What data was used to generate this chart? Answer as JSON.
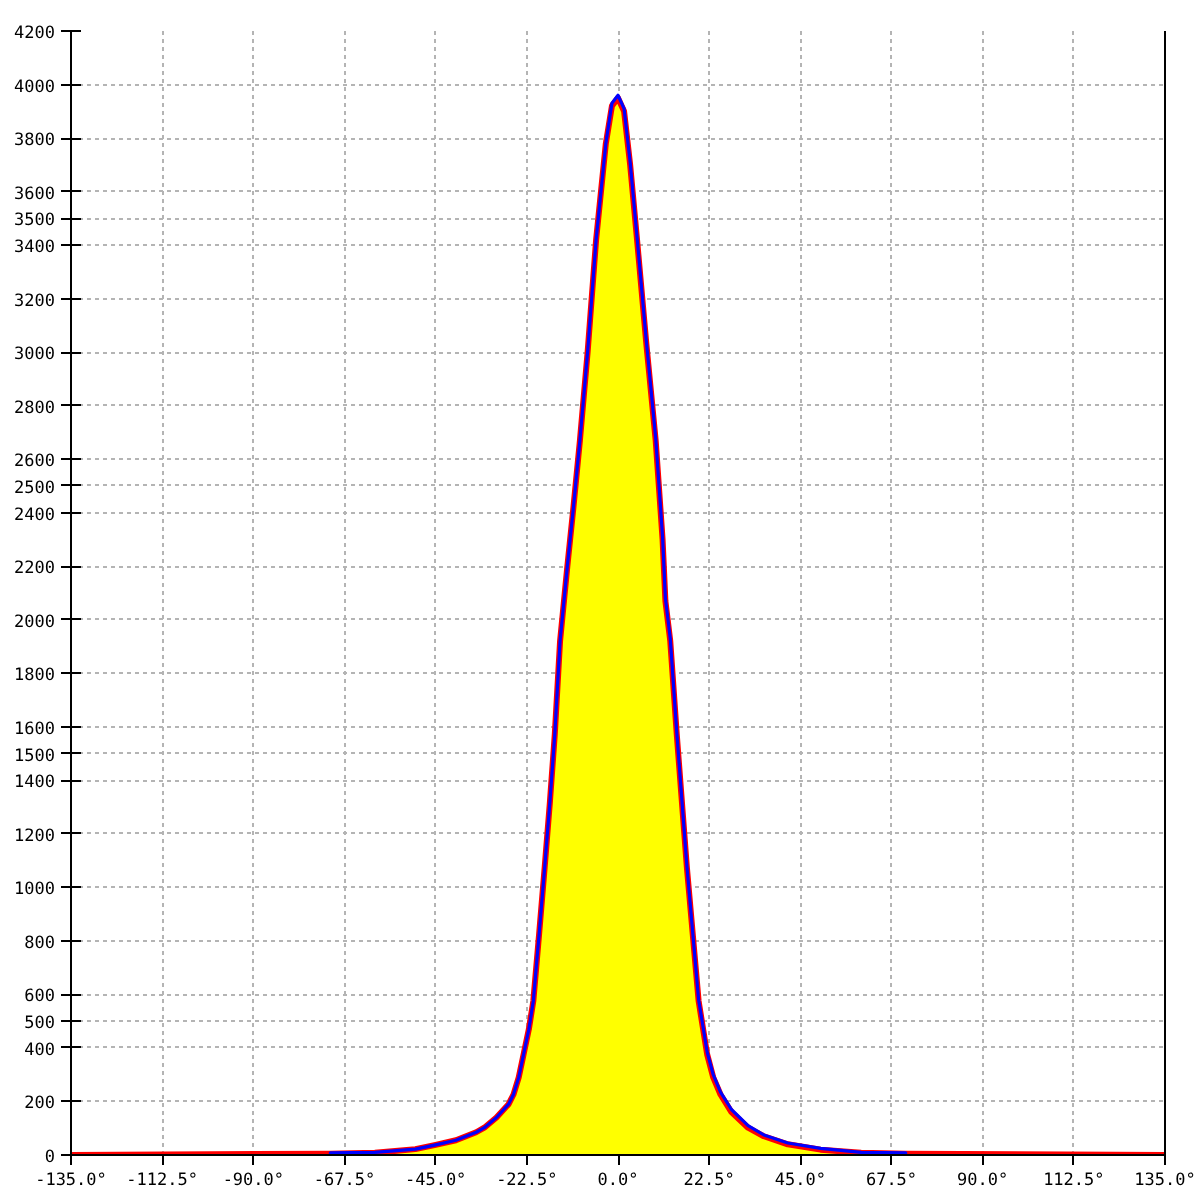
{
  "chart_data": {
    "type": "area",
    "xlim": [
      -135,
      135
    ],
    "ylim": [
      0,
      4200
    ],
    "xticks": [
      {
        "value": -135,
        "label": "-135.0°"
      },
      {
        "value": -112.5,
        "label": "-112.5°"
      },
      {
        "value": -90,
        "label": "-90.0°"
      },
      {
        "value": -67.5,
        "label": "-67.5°"
      },
      {
        "value": -45,
        "label": "-45.0°"
      },
      {
        "value": -22.5,
        "label": "-22.5°"
      },
      {
        "value": 0,
        "label": "0.0°"
      },
      {
        "value": 22.5,
        "label": "22.5°"
      },
      {
        "value": 45,
        "label": "45.0°"
      },
      {
        "value": 67.5,
        "label": "67.5°"
      },
      {
        "value": 90,
        "label": "90.0°"
      },
      {
        "value": 112.5,
        "label": "112.5°"
      },
      {
        "value": 135,
        "label": "135.0°"
      }
    ],
    "yticks": [
      0,
      200,
      400,
      500,
      600,
      800,
      1000,
      1200,
      1400,
      1500,
      1600,
      1800,
      2000,
      2200,
      2400,
      2500,
      2600,
      2800,
      3000,
      3200,
      3400,
      3500,
      3600,
      3800,
      4000,
      4200
    ],
    "grid": true,
    "series": [
      {
        "color": "#ffff00",
        "x": [
          -71,
          -60,
          -50,
          -45,
          -40,
          -35,
          -33,
          -30,
          -27,
          -25.8,
          -24.5,
          -23.3,
          -22,
          -20.9,
          -19.5,
          -18.1,
          -16.8,
          -15.6,
          -14.3,
          -12.5,
          -11,
          -9.4,
          -7.5,
          -5.4,
          -3,
          -1.5,
          0,
          1.5,
          3,
          4.7,
          7,
          9.3,
          11,
          11.7,
          12.9,
          14.5,
          17,
          19.9,
          22,
          23.5,
          25.3,
          28,
          32.1,
          36,
          41.9,
          50,
          60,
          71
        ],
        "values": [
          5,
          8,
          22,
          38,
          55,
          85,
          102,
          140,
          190,
          226,
          290,
          376,
          470,
          575,
          820,
          1074,
          1320,
          1572,
          1920,
          2200,
          2420,
          2670,
          3000,
          3420,
          3780,
          3920,
          3950,
          3900,
          3700,
          3420,
          3030,
          2670,
          2300,
          2070,
          1920,
          1572,
          1074,
          575,
          376,
          290,
          226,
          160,
          102,
          70,
          40,
          20,
          8,
          5
        ]
      },
      {
        "type": "line",
        "color": "#ff0000",
        "x": [
          -135,
          -71,
          -60,
          -50,
          -45,
          -40,
          -35,
          -33,
          -30,
          -27,
          -25.8,
          -24.5,
          -23.3,
          -22,
          -20.9,
          -19.5,
          -18.1,
          -16.8,
          -15.6,
          -14.3,
          -12.5,
          -11,
          -9.4,
          -7.5,
          -5.4,
          -3,
          -1.5,
          0,
          1.5,
          3,
          4.7,
          7,
          9.3,
          11,
          11.7,
          12.9,
          14.5,
          17,
          19.9,
          22,
          23.5,
          25.3,
          28,
          32.1,
          36,
          41.9,
          50,
          60,
          71,
          135
        ],
        "values": [
          0,
          5,
          8,
          22,
          38,
          55,
          85,
          102,
          140,
          190,
          226,
          290,
          376,
          470,
          575,
          820,
          1074,
          1320,
          1572,
          1920,
          2200,
          2420,
          2670,
          3000,
          3420,
          3780,
          3920,
          3950,
          3900,
          3700,
          3420,
          3030,
          2670,
          2300,
          2070,
          1920,
          1572,
          1074,
          575,
          376,
          290,
          226,
          160,
          102,
          70,
          40,
          20,
          8,
          5,
          0
        ]
      },
      {
        "type": "line",
        "color": "#0000ff",
        "x": [
          -71,
          -60,
          -50,
          -45,
          -40,
          -35,
          -33,
          -30,
          -27,
          -25.8,
          -24.5,
          -23.3,
          -22,
          -20.9,
          -19.5,
          -18.1,
          -16.8,
          -15.6,
          -14.3,
          -12.5,
          -11,
          -9.4,
          -7.5,
          -5.4,
          -3,
          -1.5,
          0,
          1.5,
          3,
          4.7,
          7,
          9.3,
          11,
          11.7,
          12.9,
          14.5,
          17,
          19.9,
          22,
          23.5,
          25.3,
          28,
          32.1,
          36,
          41.9,
          50,
          60,
          71
        ],
        "values": [
          8,
          10,
          22,
          38,
          55,
          85,
          102,
          140,
          190,
          226,
          290,
          376,
          470,
          575,
          820,
          1074,
          1320,
          1572,
          1920,
          2200,
          2420,
          2670,
          3000,
          3420,
          3780,
          3930,
          3960,
          3910,
          3710,
          3430,
          3040,
          2680,
          2310,
          2080,
          1930,
          1580,
          1080,
          580,
          385,
          300,
          235,
          170,
          110,
          75,
          45,
          25,
          10,
          8
        ]
      }
    ]
  }
}
